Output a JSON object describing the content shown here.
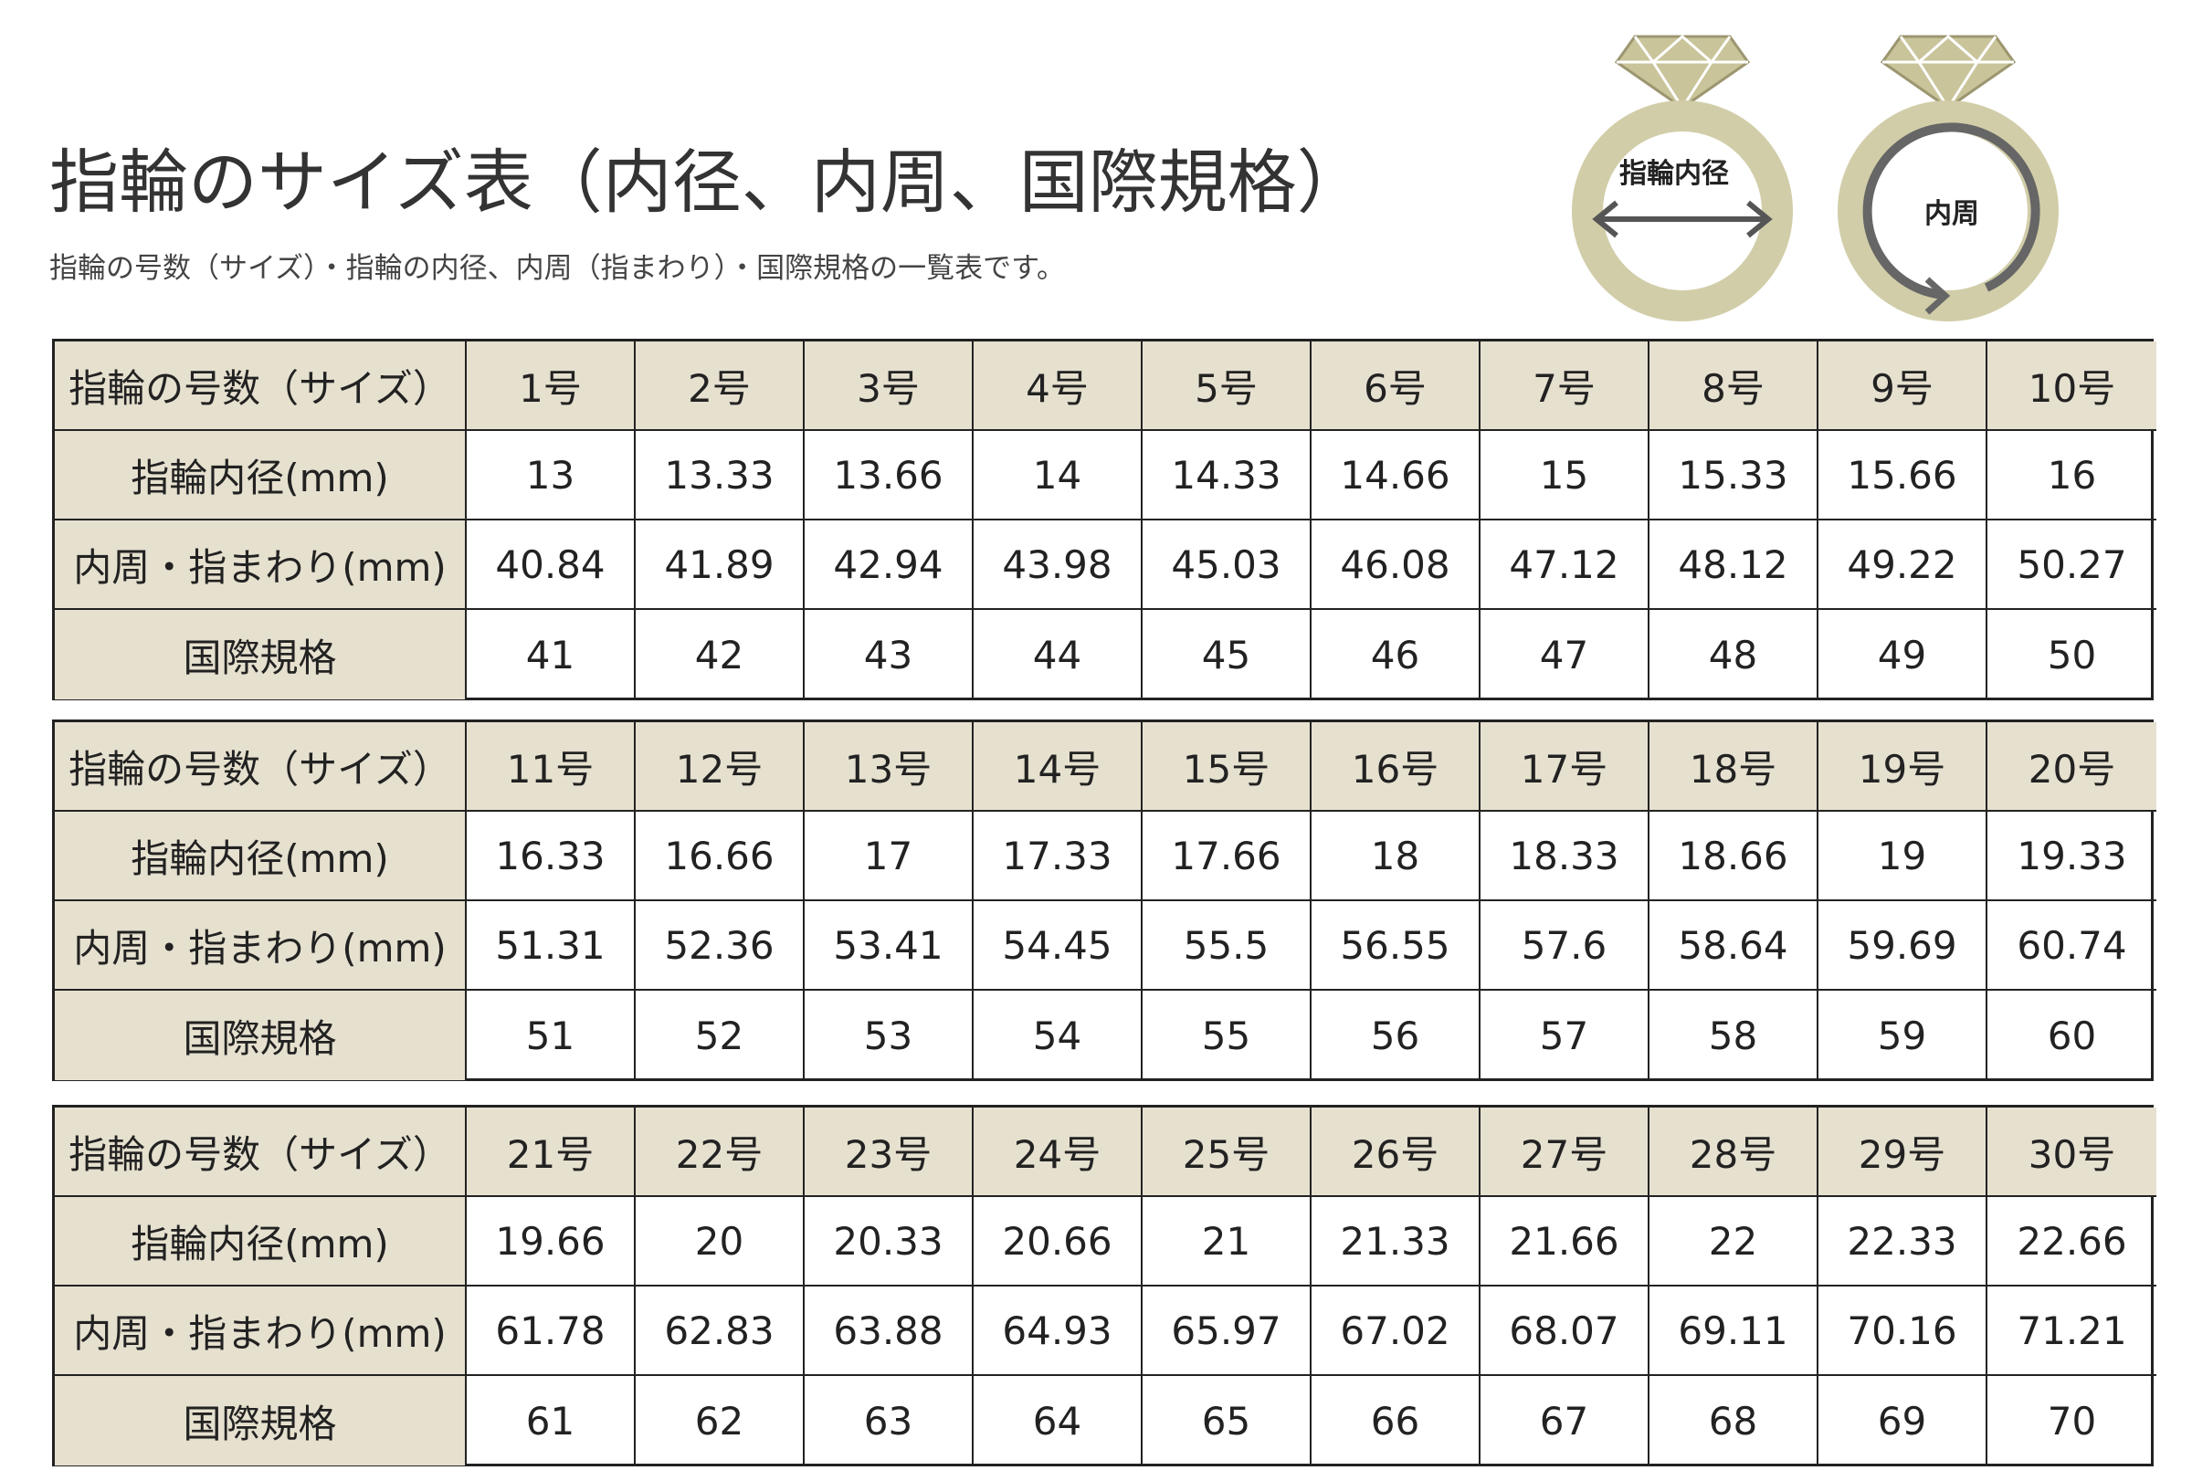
{
  "header": {
    "title": "指輪のサイズ表（内径、内周、国際規格）",
    "subtitle": "指輪の号数（サイズ）・指輪の内径、内周（指まわり）・国際規格の一覧表です。"
  },
  "icons": {
    "diameter_label": "指輪内径",
    "circumference_label": "内周"
  },
  "tables": [
    {
      "rows": [
        {
          "label": "指輪の号数（サイズ）",
          "cells": [
            "1号",
            "2号",
            "3号",
            "4号",
            "5号",
            "6号",
            "7号",
            "8号",
            "9号",
            "10号"
          ]
        },
        {
          "label": "指輪内径(mm)",
          "cells": [
            13,
            13.33,
            13.66,
            14,
            14.33,
            14.66,
            15,
            15.33,
            15.66,
            16
          ]
        },
        {
          "label": "内周・指まわり(mm)",
          "cells": [
            40.84,
            41.89,
            42.94,
            43.98,
            45.03,
            46.08,
            47.12,
            48.12,
            49.22,
            50.27
          ]
        },
        {
          "label": "国際規格",
          "cells": [
            41,
            42,
            43,
            44,
            45,
            46,
            47,
            48,
            49,
            50
          ]
        }
      ]
    },
    {
      "rows": [
        {
          "label": "指輪の号数（サイズ）",
          "cells": [
            "11号",
            "12号",
            "13号",
            "14号",
            "15号",
            "16号",
            "17号",
            "18号",
            "19号",
            "20号"
          ]
        },
        {
          "label": "指輪内径(mm)",
          "cells": [
            16.33,
            16.66,
            17,
            17.33,
            17.66,
            18,
            18.33,
            18.66,
            19,
            19.33
          ]
        },
        {
          "label": "内周・指まわり(mm)",
          "cells": [
            51.31,
            52.36,
            53.41,
            54.45,
            55.5,
            56.55,
            57.6,
            58.64,
            59.69,
            60.74
          ]
        },
        {
          "label": "国際規格",
          "cells": [
            51,
            52,
            53,
            54,
            55,
            56,
            57,
            58,
            59,
            60
          ]
        }
      ]
    },
    {
      "rows": [
        {
          "label": "指輪の号数（サイズ）",
          "cells": [
            "21号",
            "22号",
            "23号",
            "24号",
            "25号",
            "26号",
            "27号",
            "28号",
            "29号",
            "30号"
          ]
        },
        {
          "label": "指輪内径(mm)",
          "cells": [
            19.66,
            20,
            20.33,
            20.66,
            21,
            21.33,
            21.66,
            22,
            22.33,
            22.66
          ]
        },
        {
          "label": "内周・指まわり(mm)",
          "cells": [
            61.78,
            62.83,
            63.88,
            64.93,
            65.97,
            67.02,
            68.07,
            69.11,
            70.16,
            71.21
          ]
        },
        {
          "label": "国際規格",
          "cells": [
            61,
            62,
            63,
            64,
            65,
            66,
            67,
            68,
            69,
            70
          ]
        }
      ]
    }
  ]
}
